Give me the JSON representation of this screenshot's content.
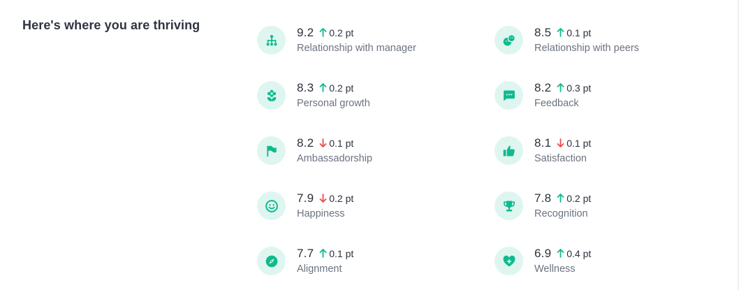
{
  "section": {
    "title": "Here's where you are thriving"
  },
  "colors": {
    "accent": "#0fba8e",
    "icon_bg": "#dff6f0",
    "up": "#0fba8e",
    "down": "#ef4a4a"
  },
  "metrics": [
    {
      "score": "9.2",
      "delta": "0.2 pt",
      "direction": "up",
      "label": "Relationship with manager",
      "icon": "org-chart-icon"
    },
    {
      "score": "8.5",
      "delta": "0.1 pt",
      "direction": "up",
      "label": "Relationship with peers",
      "icon": "peers-icon"
    },
    {
      "score": "8.3",
      "delta": "0.2 pt",
      "direction": "up",
      "label": "Personal growth",
      "icon": "flower-icon"
    },
    {
      "score": "8.2",
      "delta": "0.3 pt",
      "direction": "up",
      "label": "Feedback",
      "icon": "chat-bubble-icon"
    },
    {
      "score": "8.2",
      "delta": "0.1 pt",
      "direction": "down",
      "label": "Ambassadorship",
      "icon": "flag-icon"
    },
    {
      "score": "8.1",
      "delta": "0.1 pt",
      "direction": "down",
      "label": "Satisfaction",
      "icon": "thumbs-up-icon"
    },
    {
      "score": "7.9",
      "delta": "0.2 pt",
      "direction": "down",
      "label": "Happiness",
      "icon": "smile-icon"
    },
    {
      "score": "7.8",
      "delta": "0.2 pt",
      "direction": "up",
      "label": "Recognition",
      "icon": "trophy-icon"
    },
    {
      "score": "7.7",
      "delta": "0.1 pt",
      "direction": "up",
      "label": "Alignment",
      "icon": "compass-icon"
    },
    {
      "score": "6.9",
      "delta": "0.4 pt",
      "direction": "up",
      "label": "Wellness",
      "icon": "heart-plus-icon"
    }
  ]
}
